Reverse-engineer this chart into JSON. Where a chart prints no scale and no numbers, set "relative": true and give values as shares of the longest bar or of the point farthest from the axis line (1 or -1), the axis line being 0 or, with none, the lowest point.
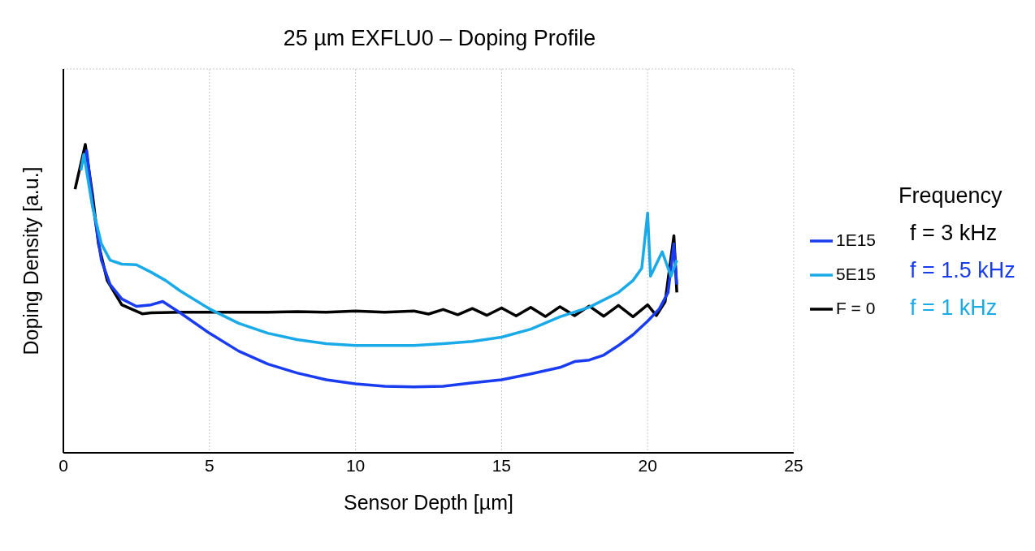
{
  "chart_data": {
    "type": "line",
    "title": "25 µm EXFLU0 – Doping Profile",
    "xlabel": "Sensor Depth [µm]",
    "ylabel": "Doping Density [a.u.]",
    "relative": true,
    "xlim": [
      0,
      25
    ],
    "xticks": [
      0,
      5,
      10,
      15,
      20,
      25
    ],
    "grid": true,
    "legend": "right",
    "marker": "none",
    "line_style": "solid",
    "annotations": [
      "Frequency",
      "f = 3 kHz",
      "f = 1.5 kHz",
      "f = 1 kHz"
    ],
    "series": [
      {
        "name": "F = 0",
        "color": "#000000",
        "x": [
          0.4,
          0.75,
          1.0,
          1.2,
          1.5,
          2,
          2.7,
          3,
          4,
          5,
          6,
          7,
          8,
          9,
          10,
          11,
          12,
          12.5,
          13,
          13.5,
          14,
          14.5,
          15,
          15.5,
          16,
          16.5,
          17,
          17.5,
          18,
          18.5,
          19,
          19.5,
          20,
          20.3,
          20.6,
          20.9,
          21
        ],
        "values": [
          0.855,
          1.0,
          0.836,
          0.678,
          0.559,
          0.48,
          0.451,
          0.454,
          0.456,
          0.456,
          0.456,
          0.456,
          0.458,
          0.456,
          0.46,
          0.456,
          0.46,
          0.45,
          0.465,
          0.448,
          0.468,
          0.446,
          0.47,
          0.444,
          0.472,
          0.442,
          0.474,
          0.445,
          0.476,
          0.443,
          0.478,
          0.441,
          0.48,
          0.445,
          0.49,
          0.704,
          0.52
        ]
      },
      {
        "name": "1E15",
        "color": "#1a3cf0",
        "x": [
          0.7,
          0.8,
          1.0,
          1.3,
          1.6,
          2,
          2.5,
          3,
          3.4,
          4,
          5,
          6,
          7,
          8,
          9,
          10,
          11,
          12,
          13,
          14,
          15,
          16,
          17,
          17.5,
          18,
          18.5,
          19,
          19.5,
          20,
          20.4,
          20.7,
          20.9,
          21
        ],
        "values": [
          0.942,
          0.98,
          0.81,
          0.625,
          0.546,
          0.499,
          0.475,
          0.48,
          0.491,
          0.454,
          0.388,
          0.33,
          0.288,
          0.259,
          0.237,
          0.224,
          0.216,
          0.214,
          0.216,
          0.227,
          0.237,
          0.256,
          0.277,
          0.296,
          0.301,
          0.317,
          0.348,
          0.383,
          0.427,
          0.467,
          0.52,
          0.678,
          0.546
        ]
      },
      {
        "name": "5E15",
        "color": "#1aaae8",
        "x": [
          0.6,
          0.7,
          1.0,
          1.3,
          1.6,
          2,
          2.5,
          3,
          3.5,
          4,
          5,
          6,
          7,
          8,
          9,
          10,
          12,
          13,
          14,
          15,
          16,
          17,
          18,
          19,
          19.5,
          19.8,
          20,
          20.1,
          20.5,
          20.8,
          21
        ],
        "values": [
          0.916,
          0.968,
          0.797,
          0.678,
          0.625,
          0.612,
          0.61,
          0.586,
          0.559,
          0.525,
          0.467,
          0.42,
          0.388,
          0.367,
          0.354,
          0.348,
          0.348,
          0.354,
          0.361,
          0.375,
          0.401,
          0.441,
          0.472,
          0.52,
          0.559,
          0.599,
          0.778,
          0.573,
          0.652,
          0.573,
          0.625
        ]
      }
    ]
  }
}
